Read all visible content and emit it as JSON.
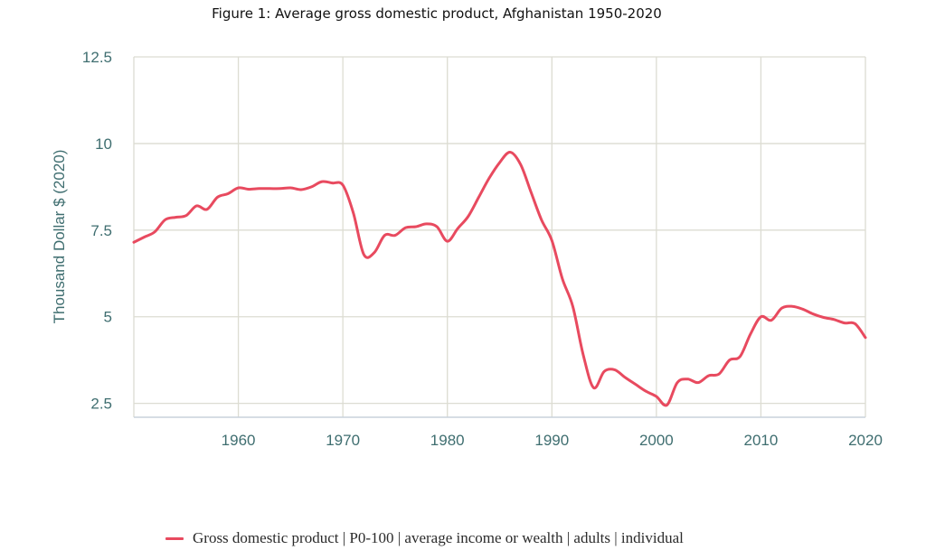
{
  "chart_data": {
    "type": "line",
    "title": "Figure 1: Average gross domestic product, Afghanistan 1950-2020",
    "xlabel": "",
    "ylabel": "Thousand Dollar $ (2020)",
    "xlim": [
      1950,
      2020
    ],
    "ylim": [
      2.1,
      12.5
    ],
    "x_ticks": [
      1960,
      1970,
      1980,
      1990,
      2000,
      2010,
      2020
    ],
    "y_ticks": [
      2.5,
      5,
      7.5,
      10,
      12.5
    ],
    "y_tick_labels": [
      "2.5",
      "5",
      "7.5",
      "10",
      "12.5"
    ],
    "grid": true,
    "legend_position": "bottom",
    "series": [
      {
        "name": "Gross domestic product | P0-100 | average income or wealth | adults | individual",
        "color": "#e84a5f",
        "x": [
          1950,
          1951,
          1952,
          1953,
          1954,
          1955,
          1956,
          1957,
          1958,
          1959,
          1960,
          1961,
          1962,
          1963,
          1964,
          1965,
          1966,
          1967,
          1968,
          1969,
          1970,
          1971,
          1972,
          1973,
          1974,
          1975,
          1976,
          1977,
          1978,
          1979,
          1980,
          1981,
          1982,
          1983,
          1984,
          1985,
          1986,
          1987,
          1988,
          1989,
          1990,
          1991,
          1992,
          1993,
          1994,
          1995,
          1996,
          1997,
          1998,
          1999,
          2000,
          2001,
          2002,
          2003,
          2004,
          2005,
          2006,
          2007,
          2008,
          2009,
          2010,
          2011,
          2012,
          2013,
          2014,
          2015,
          2016,
          2017,
          2018,
          2019,
          2020
        ],
        "values": [
          7.15,
          7.3,
          7.45,
          7.8,
          7.87,
          7.92,
          8.2,
          8.1,
          8.45,
          8.55,
          8.72,
          8.68,
          8.7,
          8.7,
          8.7,
          8.72,
          8.67,
          8.75,
          8.9,
          8.86,
          8.8,
          8.0,
          6.8,
          6.85,
          7.35,
          7.35,
          7.57,
          7.6,
          7.68,
          7.6,
          7.18,
          7.55,
          7.9,
          8.45,
          9.0,
          9.45,
          9.75,
          9.4,
          8.6,
          7.8,
          7.2,
          6.1,
          5.3,
          3.9,
          2.95,
          3.42,
          3.47,
          3.25,
          3.05,
          2.85,
          2.7,
          2.45,
          3.1,
          3.2,
          3.1,
          3.3,
          3.35,
          3.75,
          3.85,
          4.5,
          5.0,
          4.9,
          5.25,
          5.3,
          5.22,
          5.08,
          4.98,
          4.92,
          4.82,
          4.8,
          4.4
        ]
      }
    ]
  }
}
